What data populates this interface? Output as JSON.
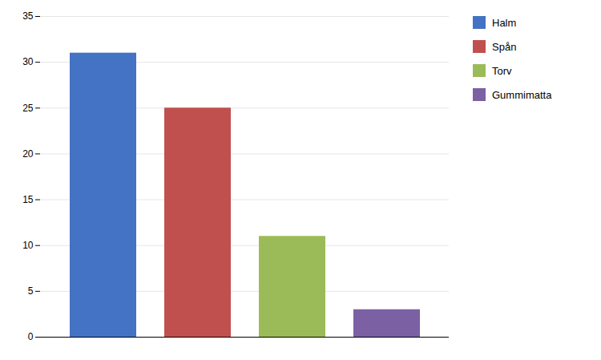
{
  "chart_data": {
    "type": "bar",
    "categories": [
      "Halm",
      "Spån",
      "Torv",
      "Gummimatta"
    ],
    "values": [
      31,
      25,
      11,
      3
    ],
    "colors": [
      "#4472C4",
      "#C0504D",
      "#9BBB59",
      "#7B60A4"
    ],
    "ylim": [
      0,
      35
    ],
    "yticks": [
      0,
      5,
      10,
      15,
      20,
      25,
      30,
      35
    ],
    "grid": true,
    "legend": "right",
    "tick_labels": "y"
  }
}
